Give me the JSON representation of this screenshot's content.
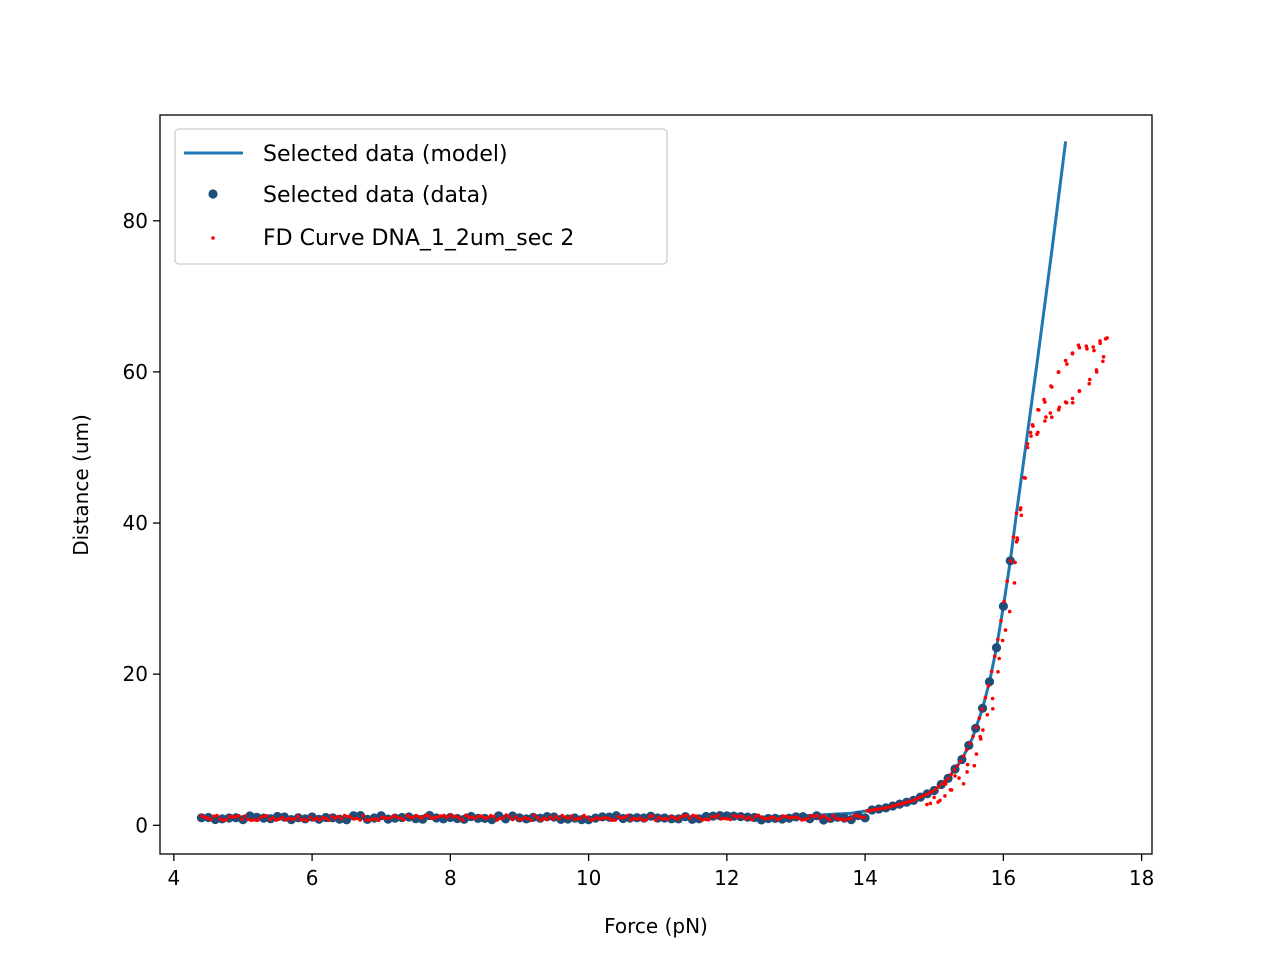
{
  "chart_data": {
    "type": "scatter",
    "title": "",
    "xlabel": "Force (pN)",
    "ylabel": "Distance (um)",
    "xlim": [
      3.8,
      18.15
    ],
    "ylim": [
      -3.8,
      94.0
    ],
    "xticks": [
      4,
      6,
      8,
      10,
      12,
      14,
      16,
      18
    ],
    "yticks": [
      0,
      20,
      40,
      60,
      80
    ],
    "grid": false,
    "legend_position": "top-left",
    "series": [
      {
        "name": "Selected data (model)",
        "kind": "line",
        "color": "#1f77b4",
        "x": [
          4.4,
          6.0,
          8.0,
          10.0,
          12.0,
          13.0,
          13.8,
          14.3,
          14.7,
          15.0,
          15.2,
          15.4,
          15.55,
          15.7,
          15.8,
          15.9,
          16.0,
          16.1,
          16.2,
          16.35,
          16.5,
          16.7,
          16.9
        ],
        "y": [
          1.0,
          1.0,
          1.0,
          1.0,
          1.0,
          1.2,
          1.6,
          2.3,
          3.3,
          4.6,
          6.2,
          8.7,
          11.5,
          15.5,
          19.0,
          23.5,
          29.0,
          35.0,
          42.0,
          52.0,
          62.0,
          76.0,
          90.5
        ]
      },
      {
        "name": "Selected data (data)",
        "kind": "marker",
        "color": "#1f4e79"
      },
      {
        "name": "FD Curve DNA_1_2um_sec 2",
        "kind": "marker-small",
        "color": "#ff0000"
      }
    ]
  }
}
